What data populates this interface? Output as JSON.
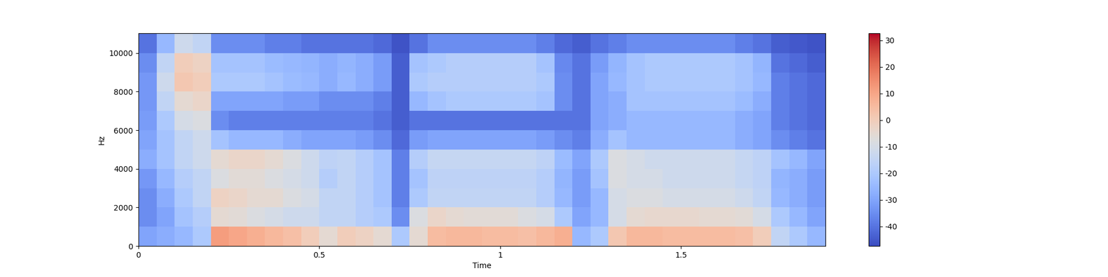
{
  "chart_data": {
    "type": "heatmap",
    "x_label": "Time",
    "y_label": "Hz",
    "time_bins": [
      0,
      0.05,
      0.1,
      0.15,
      0.2,
      0.25,
      0.3,
      0.35,
      0.4,
      0.45,
      0.5,
      0.55,
      0.6,
      0.65,
      0.7,
      0.75,
      0.8,
      0.85,
      0.9,
      0.95,
      1.0,
      1.05,
      1.1,
      1.15,
      1.2,
      1.25,
      1.3,
      1.35,
      1.4,
      1.45,
      1.5,
      1.55,
      1.6,
      1.65,
      1.7,
      1.75,
      1.8,
      1.85,
      1.9
    ],
    "freq_bins": [
      0,
      1000,
      2000,
      3000,
      4000,
      5000,
      6000,
      7000,
      8000,
      9000,
      10000,
      11025
    ],
    "cells": [
      [
        -30,
        -28,
        -25,
        -20,
        12,
        10,
        8,
        6,
        4,
        0,
        -5,
        0,
        -2,
        -5,
        -20,
        -5,
        5,
        6,
        6,
        5,
        5,
        4,
        6,
        8,
        -25,
        -20,
        2,
        6,
        6,
        5,
        5,
        5,
        5,
        4,
        0,
        -15,
        -20,
        -25
      ],
      [
        -35,
        -30,
        -22,
        -18,
        -5,
        -6,
        -8,
        -10,
        -12,
        -12,
        -15,
        -15,
        -18,
        -20,
        -35,
        -8,
        -3,
        -5,
        -6,
        -6,
        -6,
        -8,
        -10,
        -20,
        -30,
        -25,
        -10,
        -5,
        -4,
        -4,
        -4,
        -5,
        -5,
        -6,
        -10,
        -20,
        -25,
        -30
      ],
      [
        -35,
        -28,
        -20,
        -15,
        -2,
        -3,
        -5,
        -5,
        -8,
        -10,
        -15,
        -15,
        -18,
        -22,
        -38,
        -20,
        -15,
        -15,
        -15,
        -15,
        -15,
        -15,
        -18,
        -25,
        -32,
        -25,
        -10,
        -8,
        -8,
        -10,
        -10,
        -10,
        -10,
        -12,
        -15,
        -25,
        -28,
        -32
      ],
      [
        -33,
        -25,
        -18,
        -15,
        -8,
        -6,
        -6,
        -8,
        -10,
        -12,
        -18,
        -15,
        -18,
        -22,
        -38,
        -22,
        -16,
        -16,
        -16,
        -16,
        -16,
        -16,
        -18,
        -26,
        -32,
        -22,
        -8,
        -10,
        -10,
        -12,
        -12,
        -12,
        -12,
        -14,
        -16,
        -26,
        -28,
        -32
      ],
      [
        -28,
        -22,
        -15,
        -12,
        -5,
        -3,
        -3,
        -5,
        -8,
        -12,
        -16,
        -15,
        -18,
        -22,
        -38,
        -18,
        -14,
        -14,
        -14,
        -14,
        -14,
        -14,
        -16,
        -24,
        -30,
        -20,
        -8,
        -10,
        -12,
        -12,
        -12,
        -12,
        -12,
        -14,
        -16,
        -22,
        -25,
        -30
      ],
      [
        -30,
        -22,
        -15,
        -12,
        -22,
        -25,
        -25,
        -25,
        -28,
        -30,
        -30,
        -30,
        -32,
        -35,
        -42,
        -32,
        -30,
        -30,
        -30,
        -30,
        -30,
        -30,
        -32,
        -35,
        -38,
        -28,
        -22,
        -25,
        -25,
        -25,
        -25,
        -25,
        -25,
        -28,
        -30,
        -35,
        -38,
        -40
      ],
      [
        -32,
        -20,
        -10,
        -8,
        -35,
        -38,
        -38,
        -38,
        -38,
        -38,
        -38,
        -38,
        -38,
        -40,
        -44,
        -40,
        -40,
        -40,
        -40,
        -40,
        -40,
        -40,
        -40,
        -40,
        -40,
        -30,
        -28,
        -25,
        -25,
        -25,
        -25,
        -25,
        -25,
        -28,
        -30,
        -38,
        -40,
        -42
      ],
      [
        -33,
        -15,
        -5,
        -3,
        -30,
        -30,
        -30,
        -30,
        -32,
        -32,
        -35,
        -35,
        -35,
        -38,
        -44,
        -25,
        -22,
        -20,
        -20,
        -20,
        -20,
        -20,
        -22,
        -35,
        -40,
        -30,
        -28,
        -22,
        -22,
        -22,
        -22,
        -22,
        -22,
        -24,
        -28,
        -38,
        -40,
        -42
      ],
      [
        -33,
        -12,
        2,
        0,
        -20,
        -20,
        -20,
        -22,
        -24,
        -25,
        -28,
        -25,
        -28,
        -32,
        -44,
        -20,
        -18,
        -18,
        -18,
        -18,
        -18,
        -18,
        -20,
        -35,
        -40,
        -30,
        -25,
        -22,
        -20,
        -20,
        -20,
        -20,
        -20,
        -22,
        -25,
        -38,
        -40,
        -42
      ],
      [
        -35,
        -15,
        0,
        -2,
        -22,
        -22,
        -22,
        -24,
        -25,
        -26,
        -28,
        -26,
        -28,
        -32,
        -44,
        -22,
        -20,
        -18,
        -18,
        -18,
        -18,
        -18,
        -22,
        -36,
        -40,
        -32,
        -26,
        -22,
        -20,
        -20,
        -20,
        -20,
        -20,
        -22,
        -26,
        -40,
        -42,
        -44
      ],
      [
        -40,
        -25,
        -12,
        -15,
        -35,
        -35,
        -35,
        -38,
        -38,
        -40,
        -40,
        -40,
        -40,
        -42,
        -46,
        -40,
        -35,
        -35,
        -35,
        -35,
        -35,
        -35,
        -38,
        -42,
        -44,
        -40,
        -38,
        -35,
        -35,
        -35,
        -35,
        -35,
        -35,
        -38,
        -40,
        -44,
        -45,
        -46
      ]
    ],
    "xlim": [
      0,
      1.9
    ],
    "ylim": [
      0,
      11025
    ],
    "xticks": [
      0,
      0.5,
      1,
      1.5
    ],
    "yticks": [
      0,
      2000,
      4000,
      6000,
      8000,
      10000
    ],
    "colorbar_range": [
      -47.4,
      32.7
    ],
    "colorbar_ticks": [
      -40,
      -30,
      -20,
      -10,
      0,
      10,
      20,
      30
    ]
  }
}
